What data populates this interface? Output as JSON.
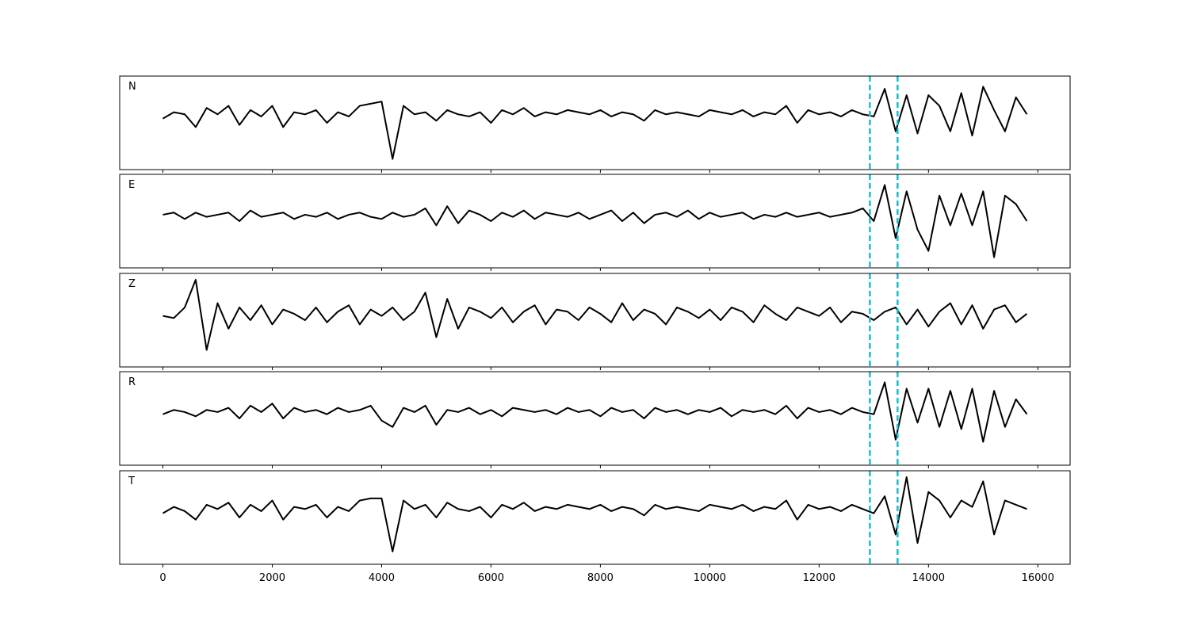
{
  "chart_data": [
    {
      "type": "line",
      "label": "N",
      "color": "#000000",
      "vline_color": "#17becf",
      "vlines": [
        12928,
        13435
      ],
      "xlim": [
        -790,
        16590
      ],
      "ylim": [
        -1.2,
        1.0
      ],
      "xticks": [
        0,
        2000,
        4000,
        6000,
        8000,
        10000,
        12000,
        14000,
        16000
      ],
      "x": [
        0,
        200,
        400,
        600,
        800,
        1000,
        1200,
        1400,
        1600,
        1800,
        2000,
        2200,
        2400,
        2600,
        2800,
        3000,
        3200,
        3400,
        3600,
        3800,
        4000,
        4200,
        4400,
        4600,
        4800,
        5000,
        5200,
        5400,
        5600,
        5800,
        6000,
        6200,
        6400,
        6600,
        6800,
        7000,
        7200,
        7400,
        7600,
        7800,
        8000,
        8200,
        8400,
        8600,
        8800,
        9000,
        9200,
        9400,
        9600,
        9800,
        10000,
        10200,
        10400,
        10600,
        10800,
        11000,
        11200,
        11400,
        11600,
        11800,
        12000,
        12200,
        12400,
        12600,
        12800,
        13000,
        13200,
        13400,
        13600,
        13800,
        14000,
        14200,
        14400,
        14600,
        14800,
        15000,
        15200,
        15400,
        15600,
        15800
      ],
      "values": [
        0,
        0.15,
        0.1,
        -0.2,
        0.25,
        0.1,
        0.3,
        -0.15,
        0.2,
        0.05,
        0.3,
        -0.2,
        0.15,
        0.1,
        0.2,
        -0.1,
        0.15,
        0.05,
        0.3,
        0.35,
        0.4,
        -0.95,
        0.3,
        0.1,
        0.15,
        -0.05,
        0.2,
        0.1,
        0.05,
        0.15,
        -0.1,
        0.2,
        0.1,
        0.25,
        0.05,
        0.15,
        0.1,
        0.2,
        0.15,
        0.1,
        0.2,
        0.05,
        0.15,
        0.1,
        -0.05,
        0.2,
        0.1,
        0.15,
        0.1,
        0.05,
        0.2,
        0.15,
        0.1,
        0.2,
        0.05,
        0.15,
        0.1,
        0.3,
        -0.1,
        0.2,
        0.1,
        0.15,
        0.05,
        0.2,
        0.1,
        0.05,
        0.7,
        -0.3,
        0.55,
        -0.35,
        0.55,
        0.3,
        -0.3,
        0.6,
        -0.4,
        0.75,
        0.2,
        -0.3,
        0.5,
        0.1
      ]
    },
    {
      "type": "line",
      "label": "E",
      "color": "#000000",
      "vline_color": "#17becf",
      "vlines": [
        12928,
        13435
      ],
      "xlim": [
        -790,
        16590
      ],
      "ylim": [
        -1.2,
        1.0
      ],
      "xticks": [
        0,
        2000,
        4000,
        6000,
        8000,
        10000,
        12000,
        14000,
        16000
      ],
      "x": [
        0,
        200,
        400,
        600,
        800,
        1000,
        1200,
        1400,
        1600,
        1800,
        2000,
        2200,
        2400,
        2600,
        2800,
        3000,
        3200,
        3400,
        3600,
        3800,
        4000,
        4200,
        4400,
        4600,
        4800,
        5000,
        5200,
        5400,
        5600,
        5800,
        6000,
        6200,
        6400,
        6600,
        6800,
        7000,
        7200,
        7400,
        7600,
        7800,
        8000,
        8200,
        8400,
        8600,
        8800,
        9000,
        9200,
        9400,
        9600,
        9800,
        10000,
        10200,
        10400,
        10600,
        10800,
        11000,
        11200,
        11400,
        11600,
        11800,
        12000,
        12200,
        12400,
        12600,
        12800,
        13000,
        13200,
        13400,
        13600,
        13800,
        14000,
        14200,
        14400,
        14600,
        14800,
        15000,
        15200,
        15400,
        15600,
        15800
      ],
      "values": [
        0.05,
        0.1,
        -0.05,
        0.1,
        0,
        0.05,
        0.1,
        -0.1,
        0.15,
        0,
        0.05,
        0.1,
        -0.05,
        0.05,
        0,
        0.1,
        -0.05,
        0.05,
        0.1,
        0,
        -0.05,
        0.1,
        0,
        0.05,
        0.2,
        -0.2,
        0.25,
        -0.15,
        0.15,
        0.05,
        -0.1,
        0.1,
        0,
        0.15,
        -0.05,
        0.1,
        0.05,
        0,
        0.1,
        -0.05,
        0.05,
        0.15,
        -0.1,
        0.1,
        -0.15,
        0.05,
        0.1,
        0,
        0.15,
        -0.05,
        0.1,
        0,
        0.05,
        0.1,
        -0.05,
        0.05,
        0,
        0.1,
        0,
        0.05,
        0.1,
        0,
        0.05,
        0.1,
        0.2,
        -0.1,
        0.75,
        -0.5,
        0.6,
        -0.3,
        -0.8,
        0.5,
        -0.2,
        0.55,
        -0.2,
        0.6,
        -0.95,
        0.5,
        0.3,
        -0.1
      ]
    },
    {
      "type": "line",
      "label": "Z",
      "color": "#000000",
      "vline_color": "#17becf",
      "vlines": [
        12928,
        13435
      ],
      "xlim": [
        -790,
        16590
      ],
      "ylim": [
        -1.2,
        1.0
      ],
      "xticks": [
        0,
        2000,
        4000,
        6000,
        8000,
        10000,
        12000,
        14000,
        16000
      ],
      "x": [
        0,
        200,
        400,
        600,
        800,
        1000,
        1200,
        1400,
        1600,
        1800,
        2000,
        2200,
        2400,
        2600,
        2800,
        3000,
        3200,
        3400,
        3600,
        3800,
        4000,
        4200,
        4400,
        4600,
        4800,
        5000,
        5200,
        5400,
        5600,
        5800,
        6000,
        6200,
        6400,
        6600,
        6800,
        7000,
        7200,
        7400,
        7600,
        7800,
        8000,
        8200,
        8400,
        8600,
        8800,
        9000,
        9200,
        9400,
        9600,
        9800,
        10000,
        10200,
        10400,
        10600,
        10800,
        11000,
        11200,
        11400,
        11600,
        11800,
        12000,
        12200,
        12400,
        12600,
        12800,
        13000,
        13200,
        13400,
        13600,
        13800,
        14000,
        14200,
        14400,
        14600,
        14800,
        15000,
        15200,
        15400,
        15600,
        15800
      ],
      "values": [
        0,
        -0.05,
        0.2,
        0.85,
        -0.8,
        0.3,
        -0.3,
        0.2,
        -0.1,
        0.25,
        -0.2,
        0.15,
        0.05,
        -0.1,
        0.2,
        -0.15,
        0.1,
        0.25,
        -0.2,
        0.15,
        0,
        0.2,
        -0.1,
        0.1,
        0.55,
        -0.5,
        0.4,
        -0.3,
        0.2,
        0.1,
        -0.05,
        0.2,
        -0.15,
        0.1,
        0.25,
        -0.2,
        0.15,
        0.1,
        -0.1,
        0.2,
        0.05,
        -0.15,
        0.3,
        -0.1,
        0.15,
        0.05,
        -0.2,
        0.2,
        0.1,
        -0.05,
        0.15,
        -0.1,
        0.2,
        0.1,
        -0.15,
        0.25,
        0.05,
        -0.1,
        0.2,
        0.1,
        0,
        0.2,
        -0.15,
        0.1,
        0.05,
        -0.1,
        0.1,
        0.2,
        -0.2,
        0.15,
        -0.25,
        0.1,
        0.3,
        -0.2,
        0.25,
        -0.3,
        0.15,
        0.25,
        -0.15,
        0.05
      ]
    },
    {
      "type": "line",
      "label": "R",
      "color": "#000000",
      "vline_color": "#17becf",
      "vlines": [
        12928,
        13435
      ],
      "xlim": [
        -790,
        16590
      ],
      "ylim": [
        -1.2,
        1.0
      ],
      "xticks": [
        0,
        2000,
        4000,
        6000,
        8000,
        10000,
        12000,
        14000,
        16000
      ],
      "x": [
        0,
        200,
        400,
        600,
        800,
        1000,
        1200,
        1400,
        1600,
        1800,
        2000,
        2200,
        2400,
        2600,
        2800,
        3000,
        3200,
        3400,
        3600,
        3800,
        4000,
        4200,
        4400,
        4600,
        4800,
        5000,
        5200,
        5400,
        5600,
        5800,
        6000,
        6200,
        6400,
        6600,
        6800,
        7000,
        7200,
        7400,
        7600,
        7800,
        8000,
        8200,
        8400,
        8600,
        8800,
        9000,
        9200,
        9400,
        9600,
        9800,
        10000,
        10200,
        10400,
        10600,
        10800,
        11000,
        11200,
        11400,
        11600,
        11800,
        12000,
        12200,
        12400,
        12600,
        12800,
        13000,
        13200,
        13400,
        13600,
        13800,
        14000,
        14200,
        14400,
        14600,
        14800,
        15000,
        15200,
        15400,
        15600,
        15800
      ],
      "values": [
        0,
        0.1,
        0.05,
        -0.05,
        0.1,
        0.05,
        0.15,
        -0.1,
        0.2,
        0.05,
        0.25,
        -0.1,
        0.15,
        0.05,
        0.1,
        0,
        0.15,
        0.05,
        0.1,
        0.2,
        -0.15,
        -0.3,
        0.15,
        0.05,
        0.2,
        -0.25,
        0.1,
        0.05,
        0.15,
        0,
        0.1,
        -0.05,
        0.15,
        0.1,
        0.05,
        0.1,
        0,
        0.15,
        0.05,
        0.1,
        -0.05,
        0.15,
        0.05,
        0.1,
        -0.1,
        0.15,
        0.05,
        0.1,
        0,
        0.1,
        0.05,
        0.15,
        -0.05,
        0.1,
        0.05,
        0.1,
        0,
        0.2,
        -0.1,
        0.15,
        0.05,
        0.1,
        0,
        0.15,
        0.05,
        0,
        0.75,
        -0.6,
        0.6,
        -0.2,
        0.6,
        -0.3,
        0.55,
        -0.35,
        0.6,
        -0.65,
        0.55,
        -0.3,
        0.35,
        0
      ]
    },
    {
      "type": "line",
      "label": "T",
      "color": "#000000",
      "vline_color": "#17becf",
      "vlines": [
        12928,
        13435
      ],
      "xlim": [
        -790,
        16590
      ],
      "ylim": [
        -1.2,
        1.0
      ],
      "xticks": [
        0,
        2000,
        4000,
        6000,
        8000,
        10000,
        12000,
        14000,
        16000
      ],
      "x": [
        0,
        200,
        400,
        600,
        800,
        1000,
        1200,
        1400,
        1600,
        1800,
        2000,
        2200,
        2400,
        2600,
        2800,
        3000,
        3200,
        3400,
        3600,
        3800,
        4000,
        4200,
        4400,
        4600,
        4800,
        5000,
        5200,
        5400,
        5600,
        5800,
        6000,
        6200,
        6400,
        6600,
        6800,
        7000,
        7200,
        7400,
        7600,
        7800,
        8000,
        8200,
        8400,
        8600,
        8800,
        9000,
        9200,
        9400,
        9600,
        9800,
        10000,
        10200,
        10400,
        10600,
        10800,
        11000,
        11200,
        11400,
        11600,
        11800,
        12000,
        12200,
        12400,
        12600,
        12800,
        13000,
        13200,
        13400,
        13600,
        13800,
        14000,
        14200,
        14400,
        14600,
        14800,
        15000,
        15200,
        15400,
        15600,
        15800
      ],
      "values": [
        0,
        0.15,
        0.05,
        -0.15,
        0.2,
        0.1,
        0.25,
        -0.1,
        0.2,
        0.05,
        0.3,
        -0.15,
        0.15,
        0.1,
        0.2,
        -0.1,
        0.15,
        0.05,
        0.3,
        0.35,
        0.35,
        -0.9,
        0.3,
        0.1,
        0.2,
        -0.1,
        0.25,
        0.1,
        0.05,
        0.15,
        -0.1,
        0.2,
        0.1,
        0.25,
        0.05,
        0.15,
        0.1,
        0.2,
        0.15,
        0.1,
        0.2,
        0.05,
        0.15,
        0.1,
        -0.05,
        0.2,
        0.1,
        0.15,
        0.1,
        0.05,
        0.2,
        0.15,
        0.1,
        0.2,
        0.05,
        0.15,
        0.1,
        0.3,
        -0.15,
        0.2,
        0.1,
        0.15,
        0.05,
        0.2,
        0.1,
        0,
        0.4,
        -0.5,
        0.85,
        -0.7,
        0.5,
        0.3,
        -0.1,
        0.3,
        0.15,
        0.75,
        -0.5,
        0.3,
        0.2,
        0.1
      ]
    }
  ]
}
